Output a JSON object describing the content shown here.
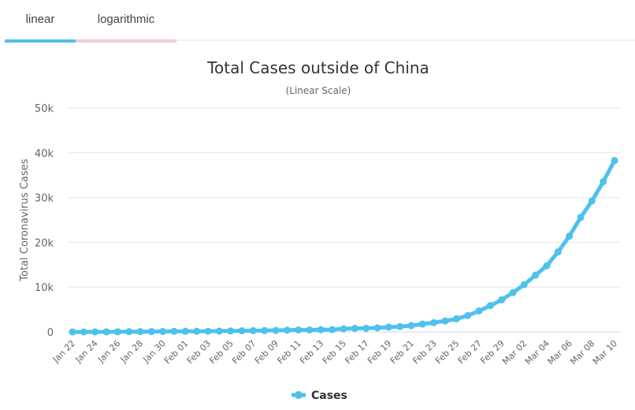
{
  "tabs": [
    {
      "label": "linear",
      "active": true,
      "color": "#4ec1ec"
    },
    {
      "label": "logarithmic",
      "active": false,
      "color": "#f3cfd1"
    }
  ],
  "chart_data": {
    "type": "line",
    "title": "Total Cases outside of China",
    "subtitle": "(Linear Scale)",
    "xlabel": "",
    "ylabel": "Total Coronavirus Cases",
    "ylim": [
      0,
      50000
    ],
    "yticks": [
      "0",
      "10k",
      "20k",
      "30k",
      "40k",
      "50k"
    ],
    "grid": true,
    "legend_position": "bottom",
    "series_color": "#4ec1ec",
    "x": [
      "Jan 22",
      "Jan 23",
      "Jan 24",
      "Jan 25",
      "Jan 26",
      "Jan 27",
      "Jan 28",
      "Jan 29",
      "Jan 30",
      "Jan 31",
      "Feb 01",
      "Feb 02",
      "Feb 03",
      "Feb 04",
      "Feb 05",
      "Feb 06",
      "Feb 07",
      "Feb 08",
      "Feb 09",
      "Feb 10",
      "Feb 11",
      "Feb 12",
      "Feb 13",
      "Feb 14",
      "Feb 15",
      "Feb 16",
      "Feb 17",
      "Feb 18",
      "Feb 19",
      "Feb 20",
      "Feb 21",
      "Feb 22",
      "Feb 23",
      "Feb 24",
      "Feb 25",
      "Feb 26",
      "Feb 27",
      "Feb 28",
      "Feb 29",
      "Mar 01",
      "Mar 02",
      "Mar 03",
      "Mar 04",
      "Mar 05",
      "Mar 06",
      "Mar 07",
      "Mar 08",
      "Mar 09",
      "Mar 10"
    ],
    "xtick_labels": [
      "Jan 22",
      "Jan 24",
      "Jan 26",
      "Jan 28",
      "Jan 30",
      "Feb 01",
      "Feb 03",
      "Feb 05",
      "Feb 07",
      "Feb 09",
      "Feb 11",
      "Feb 13",
      "Feb 15",
      "Feb 17",
      "Feb 19",
      "Feb 21",
      "Feb 23",
      "Feb 25",
      "Feb 27",
      "Feb 29",
      "Mar 02",
      "Mar 04",
      "Mar 06",
      "Mar 08",
      "Mar 10"
    ],
    "series": [
      {
        "name": "Cases",
        "values": [
          6,
          8,
          13,
          20,
          37,
          56,
          68,
          82,
          106,
          132,
          146,
          153,
          159,
          191,
          216,
          270,
          288,
          307,
          344,
          394,
          441,
          447,
          505,
          526,
          683,
          794,
          804,
          924,
          1073,
          1200,
          1402,
          1769,
          2069,
          2459,
          2918,
          3664,
          4691,
          5874,
          7169,
          8774,
          10566,
          12668,
          14769,
          17874,
          21394,
          25565,
          29241,
          33541,
          38263
        ]
      }
    ]
  },
  "legend": {
    "label": "Cases"
  }
}
